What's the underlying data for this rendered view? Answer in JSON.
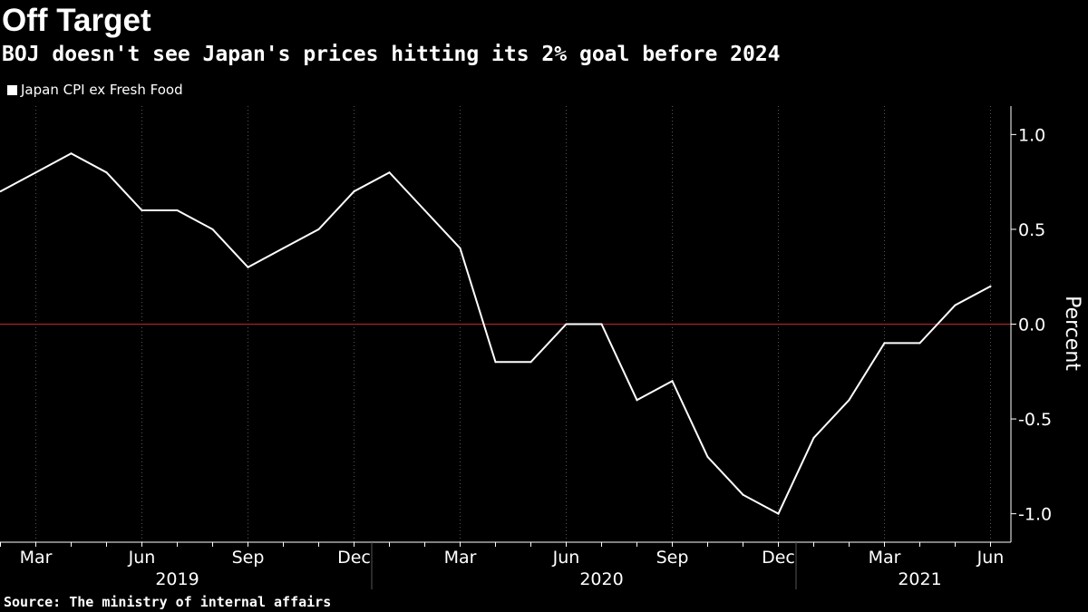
{
  "title": "Off Target",
  "subtitle": "BOJ doesn't see Japan's prices hitting its 2% goal before 2024",
  "legend": {
    "label": "Japan CPI ex Fresh Food"
  },
  "source": "Source: The ministry of internal affairs",
  "colors": {
    "background": "#000000",
    "series_line": "#ffffff",
    "zero_line": "#c0262d",
    "grid": "#555555",
    "text": "#ffffff"
  },
  "chart_data": {
    "type": "line",
    "title": "Off Target",
    "subtitle": "BOJ doesn't see Japan's prices hitting its 2% goal before 2024",
    "xlabel": "",
    "ylabel": "Percent",
    "y_axis_position": "right",
    "ylim": [
      -1.15,
      1.15
    ],
    "yticks": [
      1.0,
      0.5,
      0.0,
      -0.5,
      -1.0
    ],
    "ytick_labels": [
      "1.0",
      "0.5",
      "0.0",
      "-0.5",
      "-1.0"
    ],
    "grid": "vertical dotted",
    "legend_position": "top-left",
    "zero_line": {
      "value": 0,
      "color": "#c0262d"
    },
    "x": [
      "2019-02",
      "2019-03",
      "2019-04",
      "2019-05",
      "2019-06",
      "2019-07",
      "2019-08",
      "2019-09",
      "2019-10",
      "2019-11",
      "2019-12",
      "2020-01",
      "2020-02",
      "2020-03",
      "2020-04",
      "2020-05",
      "2020-06",
      "2020-07",
      "2020-08",
      "2020-09",
      "2020-10",
      "2020-11",
      "2020-12",
      "2021-01",
      "2021-02",
      "2021-03",
      "2021-04",
      "2021-05",
      "2021-06"
    ],
    "xlim": [
      "2019-02",
      "2021-06"
    ],
    "xtick_months": [
      "2019-03",
      "2019-06",
      "2019-09",
      "2019-12",
      "2020-03",
      "2020-06",
      "2020-09",
      "2020-12",
      "2021-03",
      "2021-06"
    ],
    "xtick_labels": [
      "Mar",
      "Jun",
      "Sep",
      "Dec",
      "Mar",
      "Jun",
      "Sep",
      "Dec",
      "Mar",
      "Jun"
    ],
    "year_labels": [
      {
        "label": "2019",
        "center": "2019-07"
      },
      {
        "label": "2020",
        "center": "2020-07"
      },
      {
        "label": "2021",
        "center": "2021-04"
      }
    ],
    "year_boundaries": [
      "2020-01",
      "2021-01"
    ],
    "series": [
      {
        "name": "Japan CPI ex Fresh Food",
        "values": [
          0.7,
          0.8,
          0.9,
          0.8,
          0.6,
          0.6,
          0.5,
          0.3,
          0.4,
          0.5,
          0.7,
          0.8,
          0.6,
          0.4,
          -0.2,
          -0.2,
          0.0,
          0.0,
          -0.4,
          -0.3,
          -0.7,
          -0.9,
          -1.0,
          -0.6,
          -0.4,
          -0.1,
          -0.1,
          0.1,
          0.2
        ]
      }
    ]
  }
}
